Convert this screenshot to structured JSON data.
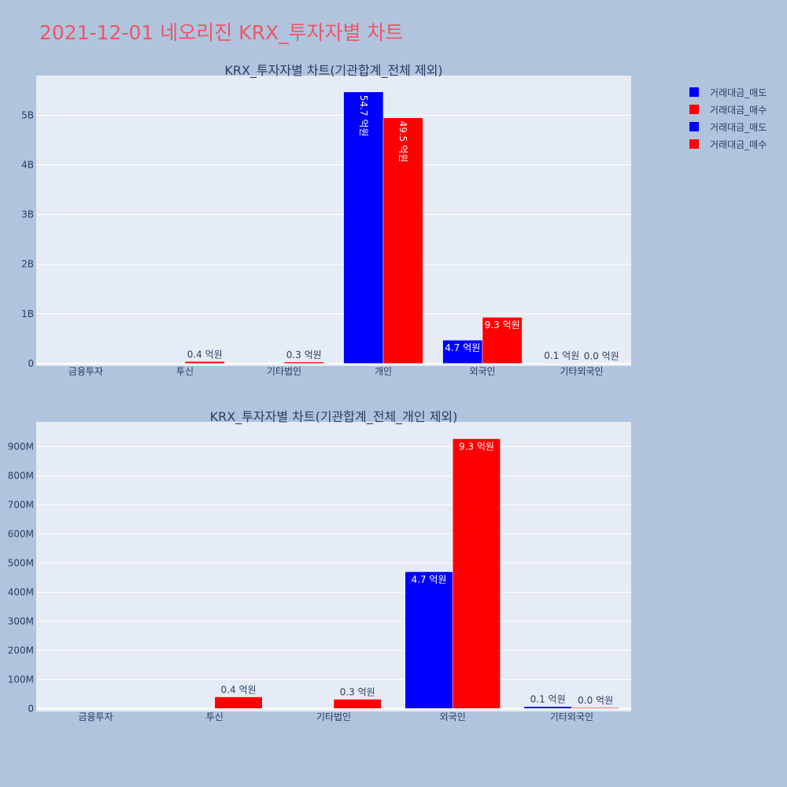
{
  "title": "2021-12-01 네오리진 KRX_투자자별 차트",
  "colors": {
    "sell": "#0000ff",
    "buy": "#ff0000",
    "background": "#b0c4de",
    "plot_bg": "#e5ecf6",
    "title": "#ef5566",
    "text": "#2a3f5f"
  },
  "legend": [
    {
      "label": "거래대금_매도",
      "color": "#0000ff"
    },
    {
      "label": "거래대금_매수",
      "color": "#ff0000"
    },
    {
      "label": "거래대금_매도",
      "color": "#0000ff"
    },
    {
      "label": "거래대금_매수",
      "color": "#ff0000"
    }
  ],
  "chart_data": [
    {
      "type": "bar",
      "title": "KRX_투자자별 차트(기관합계_전체 제외)",
      "categories": [
        "금융투자",
        "투신",
        "기타법인",
        "개인",
        "외국인",
        "기타외국인"
      ],
      "series": [
        {
          "name": "거래대금_매도",
          "values": [
            0,
            0,
            0,
            5470000000,
            470000000,
            10000000
          ],
          "labels": [
            "",
            "",
            "",
            "54.7 억원",
            "4.7 억원",
            "0.1 억원"
          ]
        },
        {
          "name": "거래대금_매수",
          "values": [
            0,
            40000000,
            30000000,
            4950000000,
            930000000,
            3000000
          ],
          "labels": [
            "",
            "0.4 억원",
            "0.3 억원",
            "49.5 억원",
            "9.3 억원",
            "0.0 억원"
          ]
        }
      ],
      "yticks": [
        0,
        1000000000,
        2000000000,
        3000000000,
        4000000000,
        5000000000
      ],
      "ytick_labels": [
        "0",
        "1B",
        "2B",
        "3B",
        "4B",
        "5B"
      ],
      "ylim": [
        -50000000,
        5800000000
      ],
      "grid": true
    },
    {
      "type": "bar",
      "title": "KRX_투자자별 차트(기관합계_전체_개인 제외)",
      "categories": [
        "금융투자",
        "투신",
        "기타법인",
        "외국인",
        "기타외국인"
      ],
      "series": [
        {
          "name": "거래대금_매도",
          "values": [
            0,
            0,
            0,
            470000000,
            7000000
          ],
          "labels": [
            "",
            "",
            "",
            "4.7 억원",
            "0.1 억원"
          ]
        },
        {
          "name": "거래대금_매수",
          "values": [
            0,
            40000000,
            32000000,
            927000000,
            3000000
          ],
          "labels": [
            "",
            "0.4 억원",
            "0.3 억원",
            "9.3 억원",
            "0.0 억원"
          ]
        }
      ],
      "yticks": [
        0,
        100000000,
        200000000,
        300000000,
        400000000,
        500000000,
        600000000,
        700000000,
        800000000,
        900000000
      ],
      "ytick_labels": [
        "0",
        "100M",
        "200M",
        "300M",
        "400M",
        "500M",
        "600M",
        "700M",
        "800M",
        "900M"
      ],
      "ylim": [
        -10000000,
        985000000
      ],
      "grid": true
    }
  ]
}
